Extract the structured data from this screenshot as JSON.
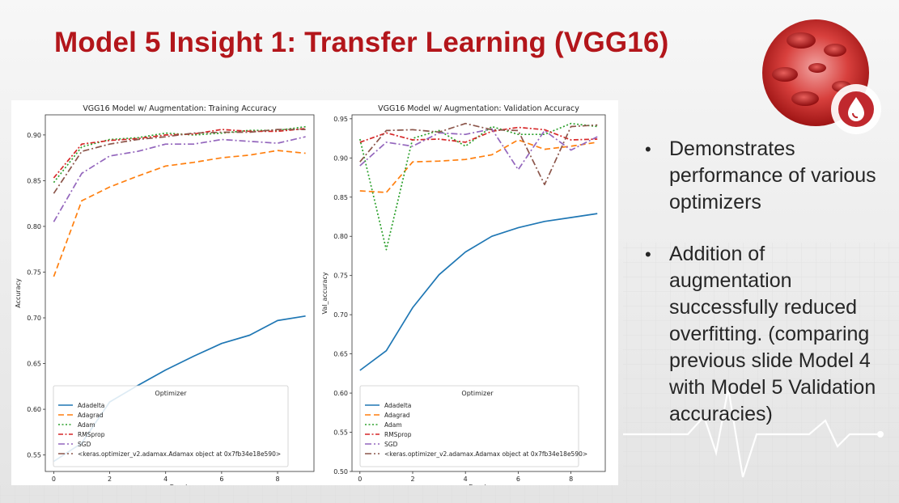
{
  "slide": {
    "title": "Model 5 Insight 1: Transfer Learning (VGG16)",
    "bullets": [
      "Demonstrates performance of various optimizers",
      " Addition of augmentation successfully reduced overfitting. (comparing previous slide Model 4 with Model 5 Validation accuracies)"
    ],
    "colors": {
      "title": "#b3161b",
      "logo_ring": "#c0282e"
    },
    "logo_icon": "blood-drop-icon"
  },
  "chart_data": [
    {
      "type": "line",
      "title": "VGG16 Model w/ Augmentation: Training Accuracy",
      "xlabel": "Epoch",
      "ylabel": "Accuracy",
      "xlim": [
        -0.3,
        9.3
      ],
      "ylim": [
        0.532,
        0.922
      ],
      "xticks": [
        0,
        2,
        4,
        6,
        8
      ],
      "yticks": [
        0.55,
        0.6,
        0.65,
        0.7,
        0.75,
        0.8,
        0.85,
        0.9
      ],
      "legend": {
        "title": "Optimizer",
        "placement": "lower-center"
      },
      "x": [
        0,
        1,
        2,
        3,
        4,
        5,
        6,
        7,
        8,
        9
      ],
      "series": [
        {
          "name": "Adadelta",
          "color": "#1f77b4",
          "dash": "",
          "values": [
            0.543,
            0.563,
            0.608,
            0.626,
            0.643,
            0.658,
            0.672,
            0.681,
            0.697,
            0.702
          ]
        },
        {
          "name": "Adagrad",
          "color": "#ff7f0e",
          "dash": "7 4",
          "values": [
            0.745,
            0.828,
            0.843,
            0.855,
            0.866,
            0.87,
            0.875,
            0.878,
            0.883,
            0.88
          ]
        },
        {
          "name": "Adam",
          "color": "#2ca02c",
          "dash": "2 2.5",
          "values": [
            0.848,
            0.887,
            0.895,
            0.897,
            0.902,
            0.9,
            0.902,
            0.905,
            0.905,
            0.909
          ]
        },
        {
          "name": "RMSprop",
          "color": "#d62728",
          "dash": "6 2.5 2 2.5",
          "values": [
            0.853,
            0.89,
            0.894,
            0.896,
            0.9,
            0.901,
            0.906,
            0.904,
            0.904,
            0.907
          ]
        },
        {
          "name": "SGD",
          "color": "#9467bd",
          "dash": "8 3 2 3",
          "values": [
            0.805,
            0.858,
            0.877,
            0.882,
            0.89,
            0.89,
            0.895,
            0.893,
            0.891,
            0.898
          ]
        },
        {
          "name": "<keras.optimizer_v2.adamax.Adamax object at 0x7fb34e18e590>",
          "color": "#8c564b",
          "dash": "8 3 2 3",
          "values": [
            0.836,
            0.882,
            0.89,
            0.895,
            0.898,
            0.902,
            0.903,
            0.903,
            0.906,
            0.906
          ]
        }
      ]
    },
    {
      "type": "line",
      "title": "VGG16 Model w/ Augmentation: Validation Accuracy",
      "xlabel": "Epoch",
      "ylabel": "Val_accuracy",
      "xlim": [
        -0.3,
        9.3
      ],
      "ylim": [
        0.5,
        0.955
      ],
      "xticks": [
        0,
        2,
        4,
        6,
        8
      ],
      "yticks": [
        0.5,
        0.55,
        0.6,
        0.65,
        0.7,
        0.75,
        0.8,
        0.85,
        0.9,
        0.95
      ],
      "legend": {
        "title": "Optimizer",
        "placement": "lower-center"
      },
      "x": [
        0,
        1,
        2,
        3,
        4,
        5,
        6,
        7,
        8,
        9
      ],
      "series": [
        {
          "name": "Adadelta",
          "color": "#1f77b4",
          "dash": "",
          "values": [
            0.629,
            0.654,
            0.709,
            0.751,
            0.78,
            0.8,
            0.811,
            0.819,
            0.824,
            0.829
          ]
        },
        {
          "name": "Adagrad",
          "color": "#ff7f0e",
          "dash": "7 4",
          "values": [
            0.858,
            0.856,
            0.895,
            0.896,
            0.898,
            0.904,
            0.923,
            0.911,
            0.915,
            0.92
          ]
        },
        {
          "name": "Adam",
          "color": "#2ca02c",
          "dash": "2 2.5",
          "values": [
            0.924,
            0.783,
            0.925,
            0.935,
            0.915,
            0.94,
            0.93,
            0.93,
            0.944,
            0.94
          ]
        },
        {
          "name": "RMSprop",
          "color": "#d62728",
          "dash": "6 2.5 2 2.5",
          "values": [
            0.92,
            0.932,
            0.923,
            0.924,
            0.92,
            0.934,
            0.939,
            0.936,
            0.923,
            0.924
          ]
        },
        {
          "name": "SGD",
          "color": "#9467bd",
          "dash": "8 3 2 3",
          "values": [
            0.89,
            0.92,
            0.915,
            0.932,
            0.93,
            0.937,
            0.885,
            0.935,
            0.91,
            0.927
          ]
        },
        {
          "name": "<keras.optimizer_v2.adamax.Adamax object at 0x7fb34e18e590>",
          "color": "#8c564b",
          "dash": "8 3 2 3",
          "values": [
            0.895,
            0.935,
            0.936,
            0.933,
            0.944,
            0.936,
            0.935,
            0.866,
            0.94,
            0.942
          ]
        }
      ]
    }
  ]
}
